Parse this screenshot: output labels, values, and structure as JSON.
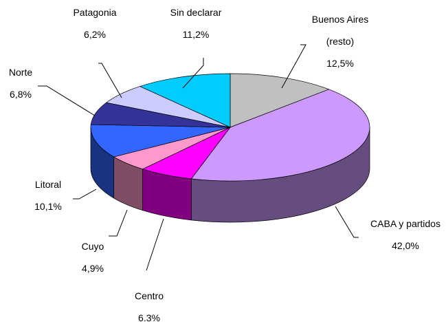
{
  "chart_data": {
    "type": "pie3d",
    "categories": [
      "Buenos Aires (resto)",
      "CABA y partidos",
      "Centro",
      "Cuyo",
      "Litoral",
      "Norte",
      "Patagonia",
      "Sin declarar"
    ],
    "values": [
      12.5,
      42.0,
      6.3,
      4.9,
      10.1,
      6.8,
      6.2,
      11.2
    ],
    "value_labels": [
      "12,5%",
      "42,0%",
      "6.3%",
      "4,9%",
      "10,1%",
      "6,8%",
      "6,2%",
      "11,2%"
    ],
    "colors": [
      "#c0c0c0",
      "#cc99ff",
      "#ff00ff",
      "#ff99cc",
      "#3366ff",
      "#333399",
      "#ccccff",
      "#00ccff"
    ]
  }
}
